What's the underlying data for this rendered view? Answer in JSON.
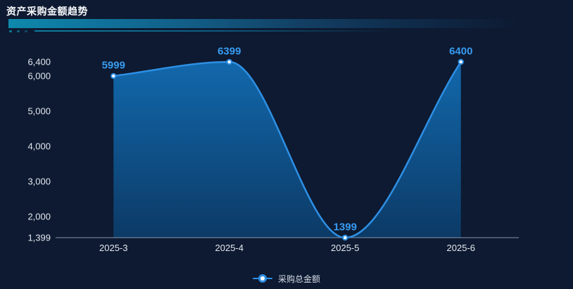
{
  "page": {
    "title": "资产采购金额趋势"
  },
  "chart_data": {
    "type": "area",
    "title": "资产采购金额趋势",
    "categories": [
      "2025-3",
      "2025-4",
      "2025-5",
      "2025-6"
    ],
    "series": [
      {
        "name": "采购总金额",
        "values": [
          5999,
          6399,
          1399,
          6400
        ]
      }
    ],
    "point_labels": [
      "5999",
      "6399",
      "1399",
      "6400"
    ],
    "y_ticks": [
      {
        "value": 1399,
        "label": "1,399"
      },
      {
        "value": 2000,
        "label": "2,000"
      },
      {
        "value": 3000,
        "label": "3,000"
      },
      {
        "value": 4000,
        "label": "4,000"
      },
      {
        "value": 5000,
        "label": "5,000"
      },
      {
        "value": 6000,
        "label": "6,000"
      },
      {
        "value": 6400,
        "label": "6,400"
      }
    ],
    "ylim": [
      1399,
      6400
    ],
    "xlabel": "",
    "ylabel": "",
    "grid": false,
    "smooth": true,
    "legend_position": "bottom",
    "colors": {
      "background": "#0D1A31",
      "line": "#2E8FE4",
      "point_label": "#389BF0",
      "area_top": "#1268AC",
      "area_bottom": "#0C3A66",
      "axis_line": "#9BA7BC",
      "axis_label": "#E3E8F0",
      "accent_bar": "#0E89AC",
      "legend_text": "#D6DDE8",
      "title_text": "#F5F7FA"
    }
  }
}
